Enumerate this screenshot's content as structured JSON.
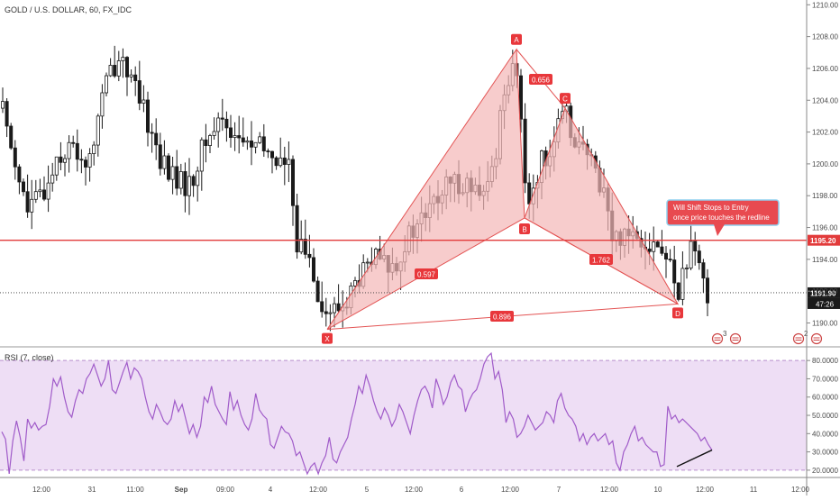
{
  "header": {
    "title": "GOLD / U.S. DOLLAR, 60, FX_IDC"
  },
  "colors": {
    "up": "#ffffff",
    "down": "#1a1a1a",
    "wick": "#1a1a1a",
    "pattern_fill": "#f4b6b6",
    "pattern_stroke": "#e35353",
    "label_bg": "#e8373b",
    "redline": "#e23b3b",
    "rsi_line": "#a05bc9",
    "rsi_band": "#e8d3f1",
    "tag_bg": "#e84a50",
    "tag_border": "#8fd0ef"
  },
  "chart_data": [
    {
      "type": "candlestick",
      "title": "GOLD / U.S. DOLLAR, 60, FX_IDC",
      "y_ticks": [
        "1190.00",
        "1192.00",
        "1194.00",
        "1196.00",
        "1198.00",
        "1200.00",
        "1202.00",
        "1204.00",
        "1206.00",
        "1208.00",
        "1210.00"
      ],
      "ylim": [
        1188.5,
        1210.3
      ],
      "x_ticks": [
        "12:00",
        "31",
        "11:00",
        "Sep",
        "09:00",
        "4",
        "12:00",
        "5",
        "12:00",
        "6",
        "12:00",
        "7",
        "12:00",
        "10",
        "12:00",
        "11",
        "12:00"
      ],
      "last_price": "1191.90",
      "countdown": "47:26",
      "redline_price": "1195.20",
      "redline_value": 1195.2,
      "harmonic_pattern": {
        "points": [
          {
            "label": "X",
            "value": 1189.6
          },
          {
            "label": "A",
            "value": 1207.2
          },
          {
            "label": "B",
            "value": 1196.6
          },
          {
            "label": "C",
            "value": 1203.5
          },
          {
            "label": "D",
            "value": 1191.2
          }
        ],
        "ratios": [
          {
            "label": "0.656"
          },
          {
            "label": "0.597"
          },
          {
            "label": "1.762"
          },
          {
            "label": "0.896"
          }
        ]
      },
      "annotation": {
        "line1": "Will Shift Stops to Entry",
        "line2": "once price touches the redline"
      },
      "event_markers": [
        {
          "count": "3"
        },
        {
          "count": "2"
        }
      ]
    },
    {
      "type": "line",
      "title": "RSI (7, close)",
      "y_ticks": [
        "20.0000",
        "30.0000",
        "40.0000",
        "50.0000",
        "60.0000",
        "70.0000",
        "80.0000"
      ],
      "ylim": [
        16,
        86
      ],
      "band": [
        20,
        80
      ],
      "values": [
        41,
        37,
        18,
        36,
        47,
        38,
        25,
        48,
        43,
        46,
        42,
        44,
        45,
        55,
        70,
        66,
        71,
        60,
        52,
        49,
        58,
        64,
        62,
        70,
        73,
        78,
        72,
        66,
        70,
        80,
        64,
        62,
        68,
        74,
        79,
        70,
        76,
        74,
        70,
        60,
        52,
        48,
        56,
        52,
        47,
        45,
        48,
        58,
        52,
        56,
        48,
        40,
        45,
        38,
        44,
        60,
        57,
        66,
        56,
        52,
        48,
        45,
        63,
        53,
        58,
        50,
        45,
        42,
        48,
        62,
        53,
        50,
        48,
        34,
        32,
        38,
        44,
        41,
        40,
        36,
        28,
        30,
        24,
        18,
        22,
        24,
        18,
        24,
        28,
        38,
        26,
        24,
        30,
        34,
        38,
        48,
        56,
        66,
        62,
        72,
        66,
        58,
        52,
        48,
        54,
        50,
        44,
        48,
        56,
        52,
        46,
        40,
        50,
        58,
        64,
        66,
        62,
        54,
        70,
        64,
        56,
        60,
        68,
        72,
        66,
        64,
        52,
        58,
        62,
        64,
        70,
        78,
        82,
        84,
        70,
        74,
        64,
        46,
        52,
        48,
        38,
        40,
        44,
        50,
        46,
        42,
        44,
        46,
        52,
        50,
        46,
        58,
        62,
        54,
        50,
        48,
        44,
        36,
        40,
        34,
        38,
        40,
        36,
        38,
        40,
        34,
        36,
        24,
        20,
        30,
        34,
        40,
        44,
        36,
        38,
        34,
        32,
        30,
        30,
        22,
        23,
        55,
        48,
        50,
        46,
        48,
        46,
        44,
        42,
        40,
        36,
        38,
        34,
        31
      ],
      "trendline": {
        "start": 22,
        "end": 31
      }
    }
  ]
}
